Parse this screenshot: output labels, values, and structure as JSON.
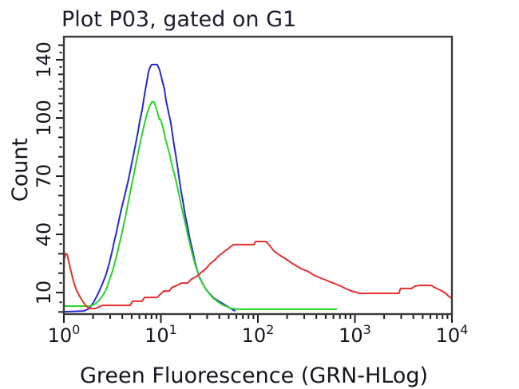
{
  "title": "Plot P03, gated on G1",
  "x_axis": {
    "label": "Green Fluorescence (GRN-HLog)",
    "scale": "log10",
    "range": [
      1,
      10000
    ],
    "tick_exponents": [
      0,
      1,
      2,
      3,
      4
    ],
    "tick_labels": [
      "10^0",
      "10^1",
      "10^2",
      "10^3",
      "10^4"
    ]
  },
  "y_axis": {
    "label": "Count",
    "ticks": [
      10,
      40,
      70,
      100,
      140
    ],
    "minor_step": 5,
    "range_top": 155
  },
  "colors": {
    "background": "#ffffff",
    "frame": "#3a3a3a",
    "text": "#1d1d2e",
    "blue_series": "#2828cf",
    "green_series": "#2ad42a",
    "red_series": "#e62e2e"
  },
  "chart_data": {
    "type": "line",
    "subtype": "flow-cytometry-overlay-histogram",
    "title": "Plot P03, gated on G1",
    "xlabel": "Green Fluorescence (GRN-HLog)",
    "ylabel": "Count",
    "xlim_log": [
      1,
      10000
    ],
    "grid": false,
    "legend": "none",
    "series": [
      {
        "name": "blue-histogram",
        "color": "#2828cf",
        "peak_x": 8.5,
        "peak_count": 137,
        "points": [
          [
            1.0,
            0.1
          ],
          [
            1.61,
            0.5
          ],
          [
            1.83,
            1.8
          ],
          [
            2.05,
            5.5
          ],
          [
            2.26,
            9.6
          ],
          [
            2.48,
            14.1
          ],
          [
            2.73,
            19.5
          ],
          [
            2.94,
            25.2
          ],
          [
            3.12,
            30.5
          ],
          [
            3.3,
            36.3
          ],
          [
            3.5,
            41.6
          ],
          [
            3.7,
            47.4
          ],
          [
            3.92,
            53.2
          ],
          [
            4.14,
            58.1
          ],
          [
            4.39,
            63.4
          ],
          [
            4.64,
            68.4
          ],
          [
            4.91,
            74.5
          ],
          [
            5.2,
            80.7
          ],
          [
            5.5,
            86.8
          ],
          [
            5.82,
            93.0
          ],
          [
            6.05,
            98.4
          ],
          [
            6.4,
            105.5
          ],
          [
            6.65,
            112.6
          ],
          [
            6.91,
            119.2
          ],
          [
            7.18,
            125.2
          ],
          [
            7.46,
            131.8
          ],
          [
            7.75,
            135.1
          ],
          [
            8.04,
            136.7
          ],
          [
            9.17,
            136.7
          ],
          [
            9.72,
            132.9
          ],
          [
            10.3,
            125.8
          ],
          [
            10.9,
            119.7
          ],
          [
            11.3,
            112.1
          ],
          [
            12.0,
            103.8
          ],
          [
            12.7,
            97.1
          ],
          [
            13.4,
            88.9
          ],
          [
            14.2,
            81.1
          ],
          [
            15.0,
            73.3
          ],
          [
            15.9,
            64.2
          ],
          [
            16.9,
            56.8
          ],
          [
            17.8,
            49.9
          ],
          [
            18.9,
            43.7
          ],
          [
            19.9,
            37.5
          ],
          [
            21.1,
            32.2
          ],
          [
            22.3,
            26.4
          ],
          [
            23.7,
            21.5
          ],
          [
            25.0,
            17.8
          ],
          [
            27.0,
            14.5
          ],
          [
            29.1,
            11.6
          ],
          [
            32.1,
            9.2
          ],
          [
            35.2,
            7.1
          ],
          [
            39.5,
            5.5
          ],
          [
            45.1,
            3.8
          ],
          [
            50.8,
            2.2
          ],
          [
            55.7,
            1.0
          ],
          [
            58.9,
            0.5
          ]
        ]
      },
      {
        "name": "green-histogram",
        "color": "#2ad42a",
        "peak_x": 8.3,
        "peak_count": 111,
        "points": [
          [
            1.0,
            3.0
          ],
          [
            1.87,
            3.0
          ],
          [
            2.05,
            3.8
          ],
          [
            2.26,
            5.5
          ],
          [
            2.48,
            7.9
          ],
          [
            2.73,
            11.6
          ],
          [
            2.94,
            16.2
          ],
          [
            3.18,
            21.1
          ],
          [
            3.43,
            27.3
          ],
          [
            3.7,
            34.2
          ],
          [
            4.0,
            41.6
          ],
          [
            4.3,
            49.0
          ],
          [
            4.64,
            57.3
          ],
          [
            5.0,
            65.5
          ],
          [
            5.4,
            73.7
          ],
          [
            5.82,
            81.9
          ],
          [
            6.28,
            90.1
          ],
          [
            6.78,
            97.1
          ],
          [
            7.18,
            102.7
          ],
          [
            7.6,
            107.7
          ],
          [
            8.04,
            111.0
          ],
          [
            8.5,
            111.0
          ],
          [
            8.88,
            107.7
          ],
          [
            9.25,
            103.3
          ],
          [
            9.65,
            99.2
          ],
          [
            9.95,
            99.2
          ],
          [
            10.5,
            95.1
          ],
          [
            11.3,
            88.1
          ],
          [
            12.2,
            81.9
          ],
          [
            13.1,
            75.3
          ],
          [
            14.2,
            68.4
          ],
          [
            15.3,
            61.0
          ],
          [
            16.5,
            53.2
          ],
          [
            17.8,
            45.8
          ],
          [
            19.2,
            38.3
          ],
          [
            20.7,
            31.4
          ],
          [
            22.3,
            25.2
          ],
          [
            24.0,
            20.3
          ],
          [
            26.0,
            16.2
          ],
          [
            28.1,
            12.9
          ],
          [
            30.9,
            10.0
          ],
          [
            33.9,
            7.5
          ],
          [
            38.0,
            5.5
          ],
          [
            42.7,
            3.8
          ],
          [
            48.5,
            2.6
          ],
          [
            53.2,
            1.8
          ],
          [
            64.5,
            1.4
          ],
          [
            653,
            1.4
          ]
        ]
      },
      {
        "name": "red-histogram",
        "color": "#e62e2e",
        "peak_x": 110,
        "peak_count": 36,
        "points": [
          [
            1.0,
            26.4
          ],
          [
            1.04,
            30.1
          ],
          [
            1.08,
            29.7
          ],
          [
            1.14,
            24.4
          ],
          [
            1.21,
            19.0
          ],
          [
            1.28,
            14.5
          ],
          [
            1.35,
            11.2
          ],
          [
            1.46,
            7.9
          ],
          [
            1.58,
            5.1
          ],
          [
            1.7,
            3.0
          ],
          [
            1.83,
            1.8
          ],
          [
            2.13,
            1.8
          ],
          [
            2.48,
            3.4
          ],
          [
            4.82,
            3.4
          ],
          [
            5.1,
            5.5
          ],
          [
            6.4,
            5.5
          ],
          [
            6.78,
            7.5
          ],
          [
            9.17,
            7.5
          ],
          [
            9.72,
            8.8
          ],
          [
            10.7,
            10.8
          ],
          [
            12.2,
            10.8
          ],
          [
            12.9,
            12.5
          ],
          [
            14.7,
            13.7
          ],
          [
            16.2,
            14.9
          ],
          [
            18.9,
            14.9
          ],
          [
            20.7,
            17.0
          ],
          [
            23.3,
            18.2
          ],
          [
            26.0,
            20.3
          ],
          [
            29.1,
            22.3
          ],
          [
            32.1,
            24.8
          ],
          [
            36.0,
            26.8
          ],
          [
            39.5,
            28.9
          ],
          [
            44.4,
            30.9
          ],
          [
            49.4,
            32.6
          ],
          [
            55.7,
            34.7
          ],
          [
            91.0,
            34.7
          ],
          [
            94.5,
            36.3
          ],
          [
            121,
            36.3
          ],
          [
            130,
            34.7
          ],
          [
            146,
            31.4
          ],
          [
            167,
            29.3
          ],
          [
            194,
            27.3
          ],
          [
            230,
            24.8
          ],
          [
            279,
            22.3
          ],
          [
            323,
            21.1
          ],
          [
            390,
            18.6
          ],
          [
            471,
            17.0
          ],
          [
            570,
            15.3
          ],
          [
            688,
            13.7
          ],
          [
            800,
            12.1
          ],
          [
            918,
            10.8
          ],
          [
            1060,
            10.0
          ],
          [
            1100,
            9.6
          ],
          [
            2840,
            9.6
          ],
          [
            2950,
            12.1
          ],
          [
            3860,
            12.1
          ],
          [
            4140,
            13.3
          ],
          [
            4680,
            13.7
          ],
          [
            6110,
            13.7
          ],
          [
            6710,
            12.5
          ],
          [
            7660,
            11.2
          ],
          [
            8620,
            9.6
          ],
          [
            9310,
            8.0
          ],
          [
            10000,
            7.1
          ]
        ]
      }
    ]
  }
}
